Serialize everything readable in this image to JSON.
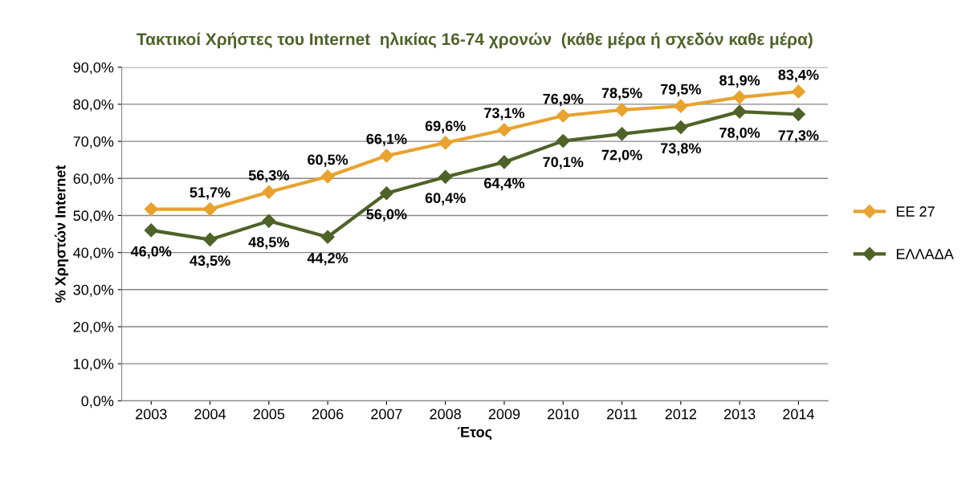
{
  "chart_data": {
    "type": "line",
    "title": "Τακτικοί Χρήστες του Internet  ηλικίας 16-74 χρονών  (κάθε μέρα ή σχεδόν καθε μέρα)",
    "xlabel": "Έτος",
    "ylabel": "% Χρηστών Internet",
    "categories": [
      "2003",
      "2004",
      "2005",
      "2006",
      "2007",
      "2008",
      "2009",
      "2010",
      "2011",
      "2012",
      "2013",
      "2014"
    ],
    "series": [
      {
        "name": "ΕΕ 27",
        "color": "#e8a32e",
        "values": [
          51.7,
          51.7,
          56.3,
          60.5,
          66.1,
          69.6,
          73.1,
          76.9,
          78.5,
          79.5,
          81.9,
          83.4
        ],
        "value_labels": [
          null,
          "51,7%",
          "56,3%",
          "60,5%",
          "66,1%",
          "69,6%",
          "73,1%",
          "76,9%",
          "78,5%",
          "79,5%",
          "81,9%",
          "83,4%"
        ]
      },
      {
        "name": "ΕΛΛΑΔΑ",
        "color": "#4f6228",
        "values": [
          46.0,
          43.5,
          48.5,
          44.2,
          56.0,
          60.4,
          64.4,
          70.1,
          72.0,
          73.8,
          78.0,
          77.3
        ],
        "value_labels": [
          "46,0%",
          "43,5%",
          "48,5%",
          "44,2%",
          "56,0%",
          "60,4%",
          "64,4%",
          "70,1%",
          "72,0%",
          "73,8%",
          "78,0%",
          "77,3%"
        ]
      }
    ],
    "ylim": [
      0,
      90
    ],
    "yticks": [
      {
        "value": 0,
        "label": "0,0%"
      },
      {
        "value": 10,
        "label": "10,0%"
      },
      {
        "value": 20,
        "label": "20,0%"
      },
      {
        "value": 30,
        "label": "30,0%"
      },
      {
        "value": 40,
        "label": "40,0%"
      },
      {
        "value": 50,
        "label": "50,0%"
      },
      {
        "value": 60,
        "label": "60,0%"
      },
      {
        "value": 70,
        "label": "70,0%"
      },
      {
        "value": 80,
        "label": "80,0%"
      },
      {
        "value": 90,
        "label": "90,0%"
      }
    ],
    "grid": "y",
    "legend": "right",
    "marker": "diamond",
    "line_style": "solid"
  }
}
